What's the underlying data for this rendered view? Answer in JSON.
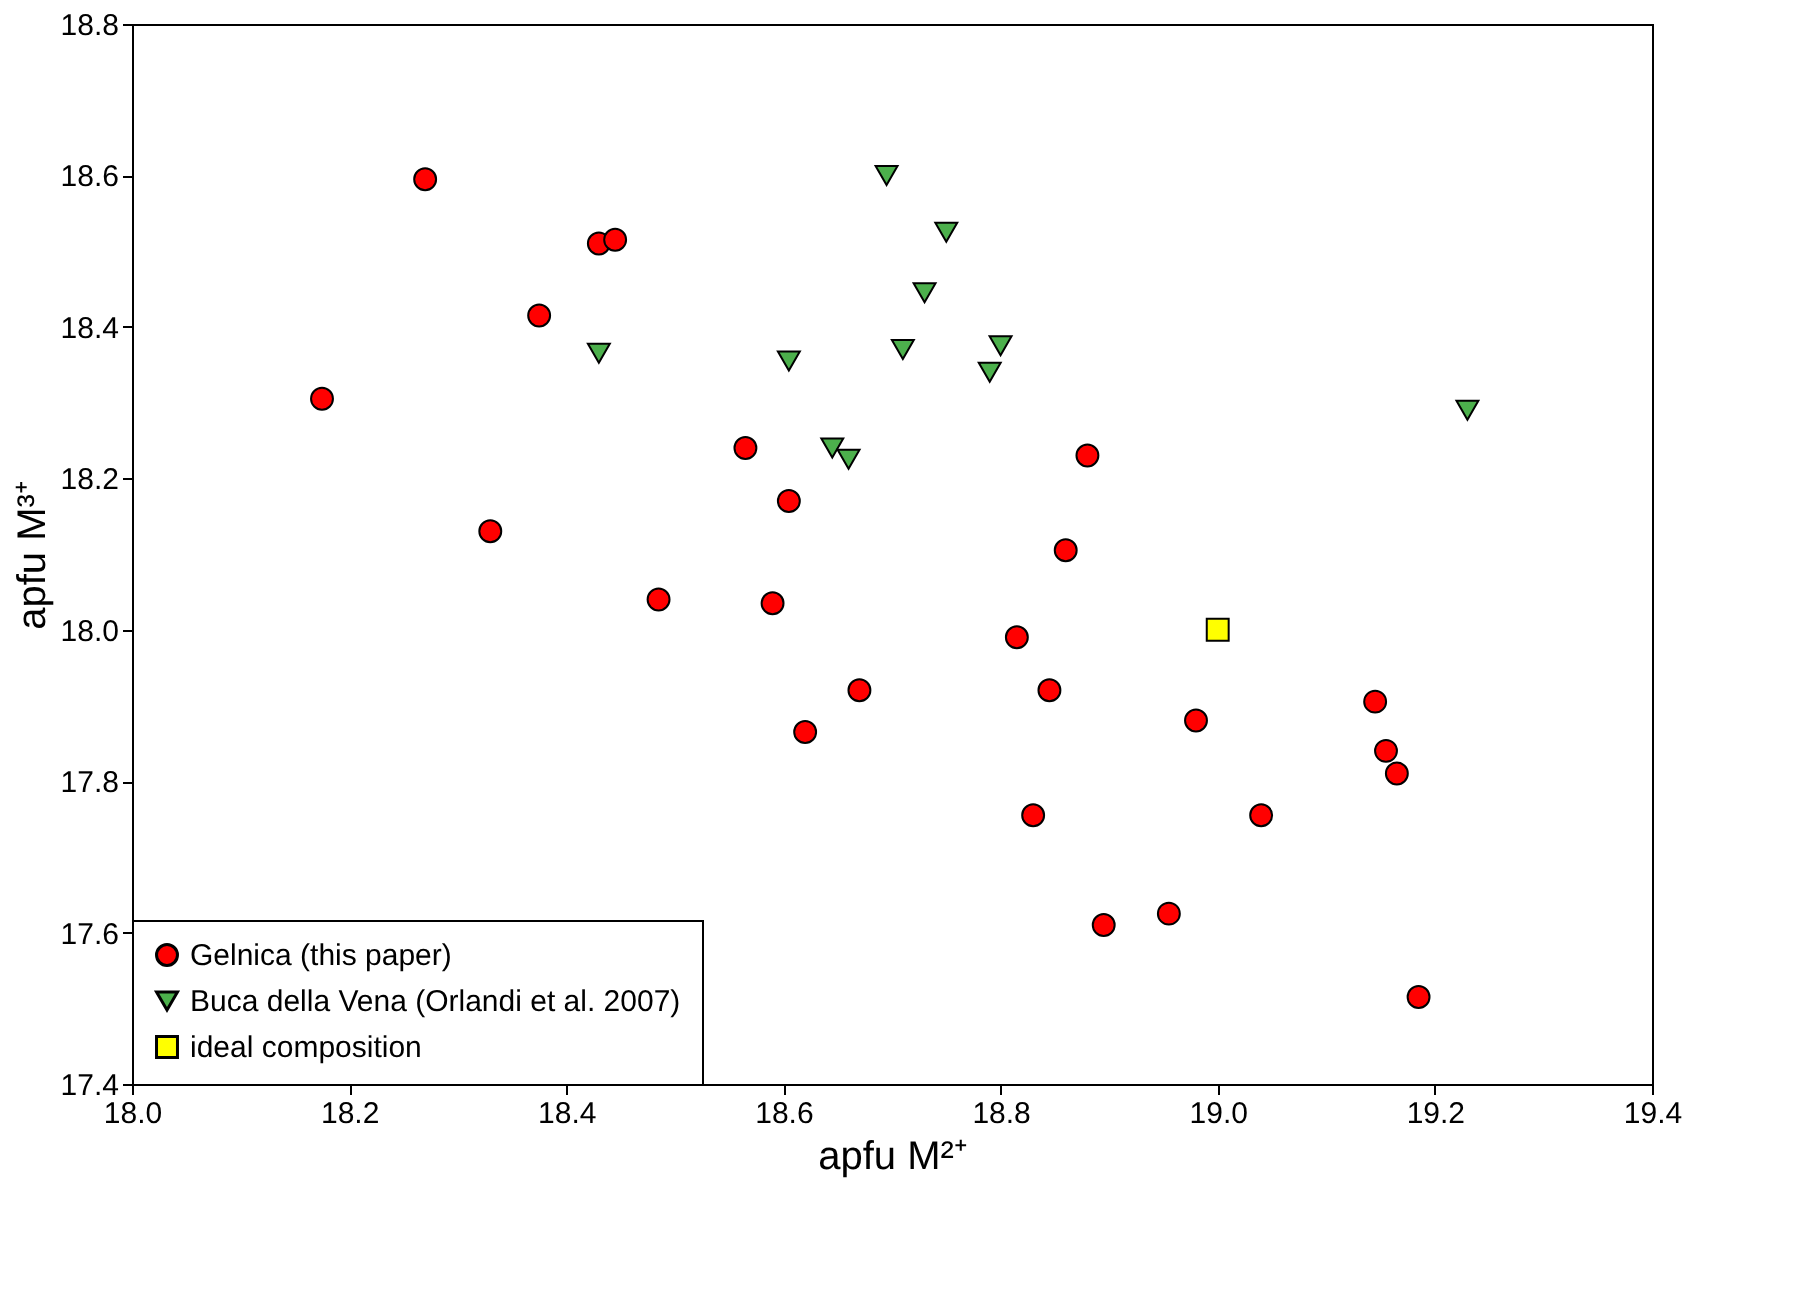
{
  "chart_data": {
    "type": "scatter",
    "xlabel": "apfu M²⁺",
    "ylabel": "apfu M³⁺",
    "xlim": [
      18.0,
      19.4
    ],
    "xticks": [
      {
        "value": 18,
        "label": "18.0"
      },
      18.2,
      18.4,
      18.6,
      18.8,
      {
        "value": 19,
        "label": "19.0"
      },
      19.2,
      19.4
    ],
    "ylim": [
      17.4,
      18.8
    ],
    "yticks": [
      17.4,
      17.6,
      17.8,
      {
        "value": 18,
        "label": "18.0"
      },
      18.2,
      18.4,
      18.6,
      18.8
    ],
    "grid": false,
    "legend": "bottom left",
    "series": [
      {
        "name": "Gelnica (this paper)",
        "color": "#ff0000",
        "marker": "circle",
        "x": [
          18.175,
          18.27,
          18.33,
          18.375,
          18.43,
          18.445,
          18.485,
          18.565,
          18.59,
          18.605,
          18.62,
          18.67,
          18.815,
          18.83,
          18.845,
          18.86,
          18.88,
          18.895,
          18.955,
          18.98,
          19.04,
          19.145,
          19.155,
          19.165,
          19.185
        ],
        "values": [
          18.305,
          18.595,
          18.13,
          18.415,
          18.51,
          18.515,
          18.04,
          18.24,
          18.035,
          18.17,
          17.865,
          17.92,
          17.99,
          17.755,
          17.92,
          18.105,
          18.23,
          17.61,
          17.625,
          17.88,
          17.755,
          17.905,
          17.84,
          17.81,
          17.515
        ]
      },
      {
        "name": "Buca della Vena (Orlandi et al. 2007)",
        "color": "#4cb04c",
        "marker": "triangle",
        "x": [
          18.43,
          18.605,
          18.645,
          18.66,
          18.695,
          18.71,
          18.73,
          18.75,
          18.79,
          18.8,
          19.23
        ],
        "values": [
          18.365,
          18.355,
          18.24,
          18.225,
          18.6,
          18.37,
          18.445,
          18.525,
          18.34,
          18.375,
          18.29
        ]
      },
      {
        "name": "ideal composition",
        "color": "#ffff00",
        "marker": "square",
        "x": [
          19.0
        ],
        "values": [
          18.0
        ]
      }
    ]
  }
}
